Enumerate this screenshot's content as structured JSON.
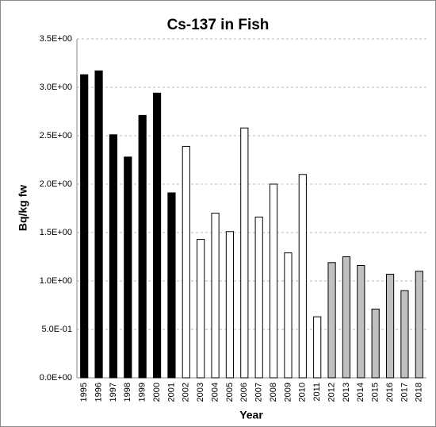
{
  "chart_data": {
    "type": "bar",
    "title": "Cs-137 in Fish",
    "x_label": "Year",
    "y_label": "Bq/kg fw",
    "categories": [
      "1995",
      "1996",
      "1997",
      "1998",
      "1999",
      "2000",
      "2001",
      "2002",
      "2003",
      "2004",
      "2005",
      "2006",
      "2007",
      "2008",
      "2009",
      "2010",
      "2011",
      "2012",
      "2013",
      "2014",
      "2015",
      "2016",
      "2017",
      "2018"
    ],
    "values": [
      3.13,
      3.17,
      2.51,
      2.28,
      2.71,
      2.94,
      1.91,
      2.39,
      1.43,
      1.7,
      1.51,
      2.58,
      1.66,
      2.0,
      1.29,
      2.1,
      0.63,
      1.19,
      1.25,
      1.16,
      0.71,
      1.07,
      0.9,
      1.1
    ],
    "colors": [
      "#000000",
      "#000000",
      "#000000",
      "#000000",
      "#000000",
      "#000000",
      "#000000",
      "#ffffff",
      "#ffffff",
      "#ffffff",
      "#ffffff",
      "#ffffff",
      "#ffffff",
      "#ffffff",
      "#ffffff",
      "#ffffff",
      "#ffffff",
      "#c0c0c0",
      "#c0c0c0",
      "#c0c0c0",
      "#c0c0c0",
      "#c0c0c0",
      "#c0c0c0",
      "#c0c0c0"
    ],
    "ylim": [
      0,
      3.5
    ],
    "yticks": [
      {
        "value": 0,
        "label": "0.0E+00"
      },
      {
        "value": 0.5,
        "label": "5.0E-01"
      },
      {
        "value": 1.0,
        "label": "1.0E+00"
      },
      {
        "value": 1.5,
        "label": "1.5E+00"
      },
      {
        "value": 2.0,
        "label": "2.0E+00"
      },
      {
        "value": 2.5,
        "label": "2.5E+00"
      },
      {
        "value": 3.0,
        "label": "3.0E+00"
      },
      {
        "value": 3.5,
        "label": "3.5E+00"
      }
    ],
    "grid": true
  }
}
